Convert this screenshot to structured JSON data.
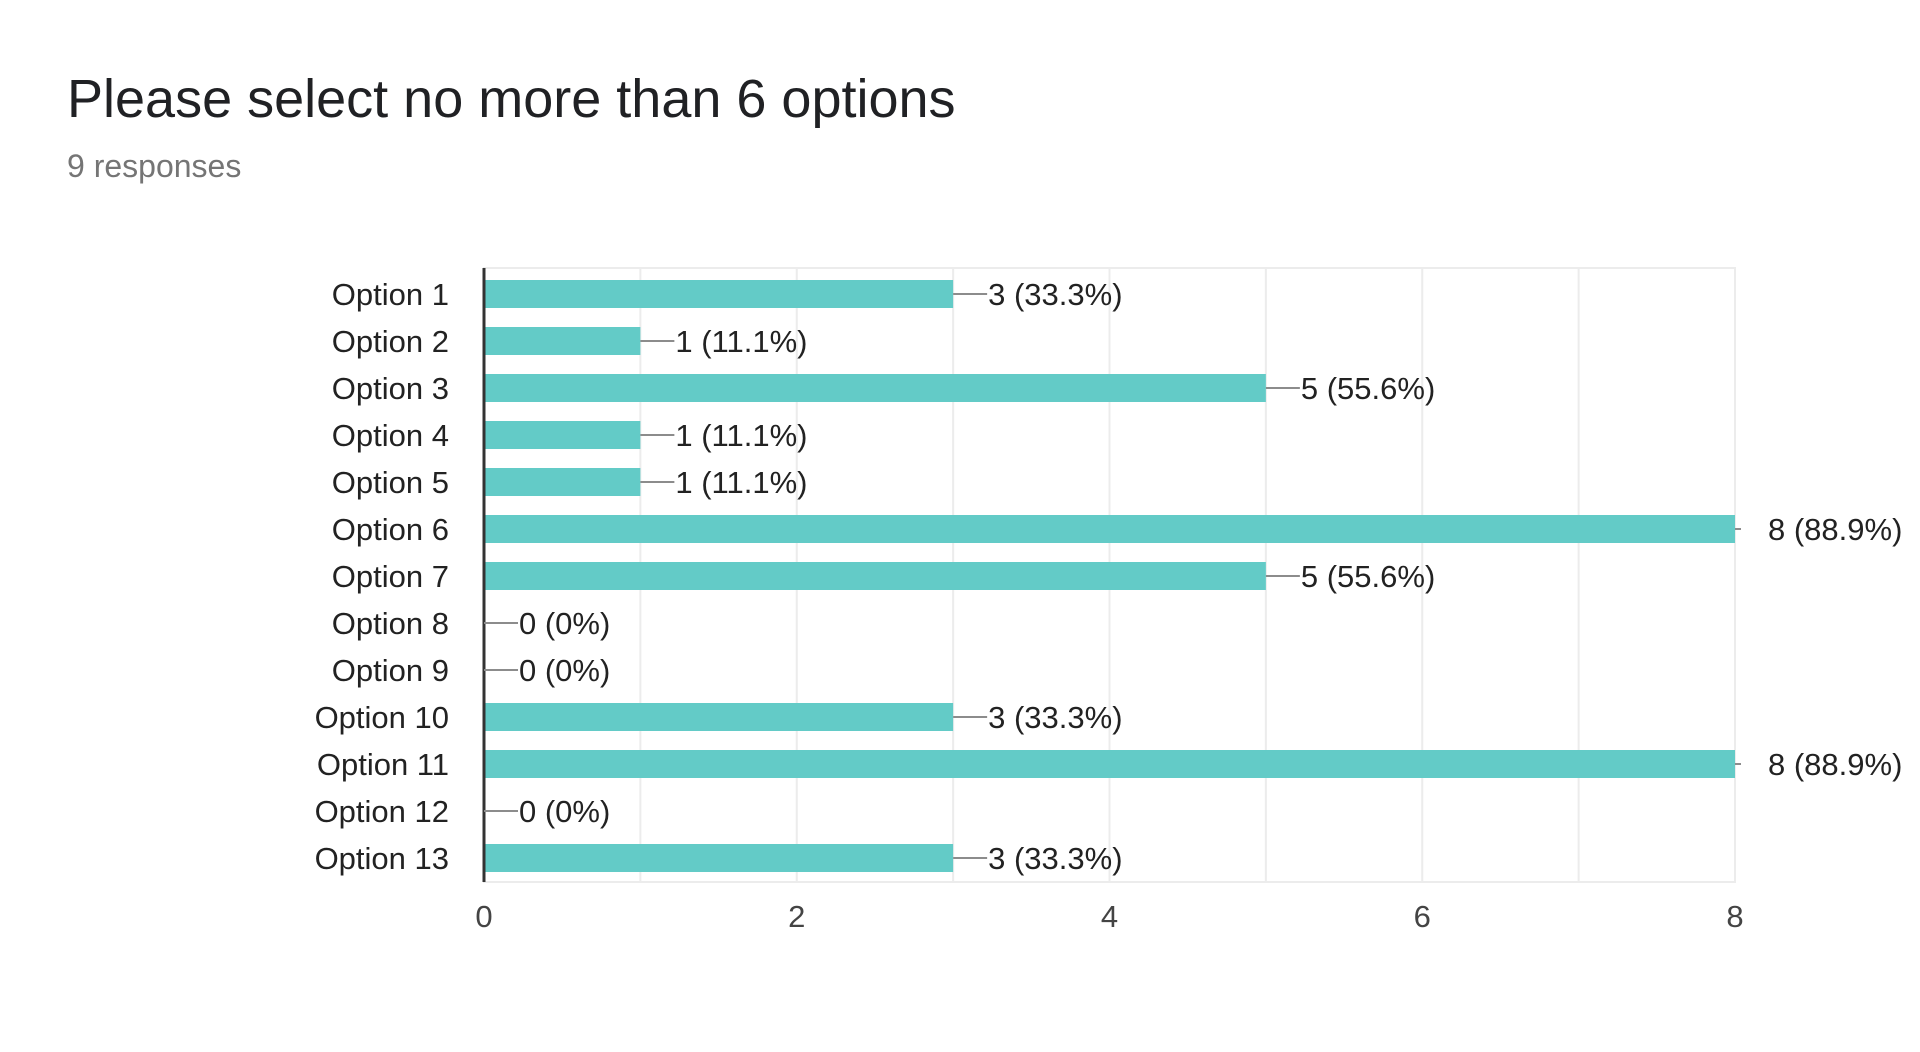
{
  "header": {
    "title": "Please select no more than 6 options",
    "subtitle": "9 responses"
  },
  "colors": {
    "bar": "#63cbc7",
    "grid": "#ececec",
    "axis": "#333333",
    "leader": "#8c8c8c",
    "text": "#222222",
    "tick_text": "#444444"
  },
  "chart_data": {
    "type": "bar",
    "orientation": "horizontal",
    "title": "Please select no more than 6 options",
    "subtitle": "9 responses",
    "categories": [
      "Option 1",
      "Option 2",
      "Option 3",
      "Option 4",
      "Option 5",
      "Option 6",
      "Option 7",
      "Option 8",
      "Option 9",
      "Option 10",
      "Option 11",
      "Option 12",
      "Option 13"
    ],
    "values": [
      3,
      1,
      5,
      1,
      1,
      8,
      5,
      0,
      0,
      3,
      8,
      0,
      3
    ],
    "data_labels": [
      "3 (33.3%)",
      "1 (11.1%)",
      "5 (55.6%)",
      "1 (11.1%)",
      "1 (11.1%)",
      "8 (88.9%)",
      "5 (55.6%)",
      "0 (0%)",
      "0 (0%)",
      "3 (33.3%)",
      "8 (88.9%)",
      "0 (0%)",
      "3 (33.3%)"
    ],
    "xlim": [
      0,
      8
    ],
    "xticks": [
      0,
      2,
      4,
      6,
      8
    ],
    "grid": true,
    "legend": "none"
  }
}
